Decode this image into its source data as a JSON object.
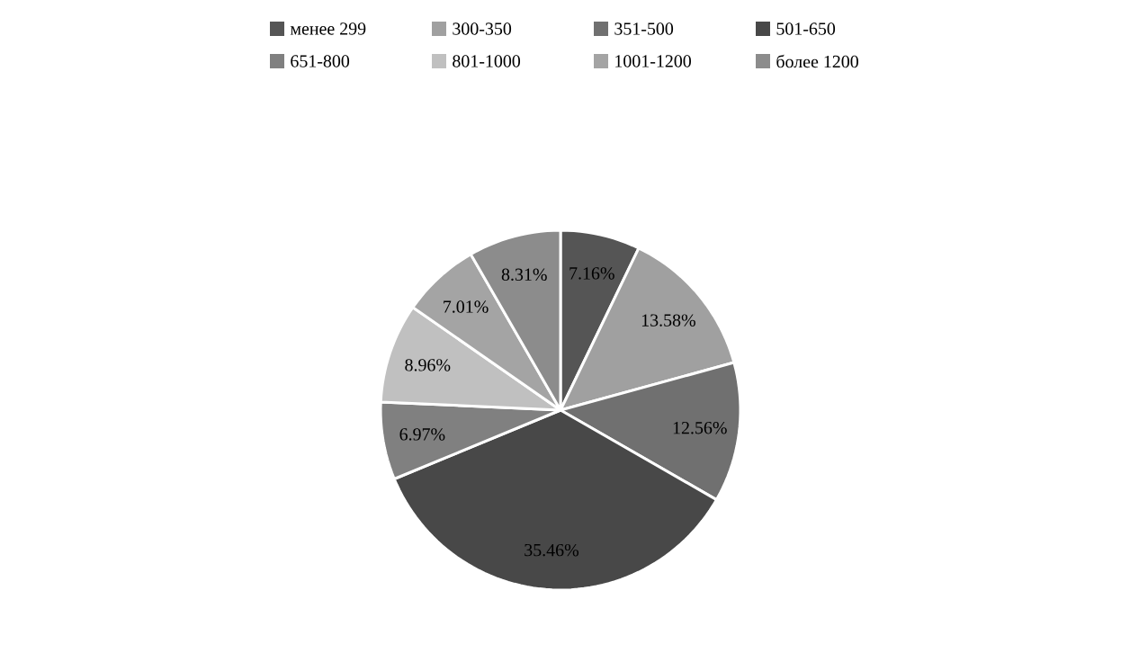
{
  "chart_data": {
    "type": "pie",
    "categories": [
      "менее 299",
      "300-350",
      "351-500",
      "501-650",
      "651-800",
      "801-1000",
      "1001-1200",
      "более 1200"
    ],
    "values": [
      7.16,
      13.58,
      12.56,
      35.46,
      6.97,
      8.96,
      7.01,
      8.31
    ],
    "value_labels": [
      "7.16%",
      "13.58%",
      "12.56%",
      "35.46%",
      "6.97%",
      "8.96%",
      "7.01%",
      "8.31%"
    ],
    "colors": [
      "#555555",
      "#a0a0a0",
      "#707070",
      "#484848",
      "#808080",
      "#c0c0c0",
      "#a4a4a4",
      "#8c8c8c"
    ],
    "legend": "top"
  }
}
